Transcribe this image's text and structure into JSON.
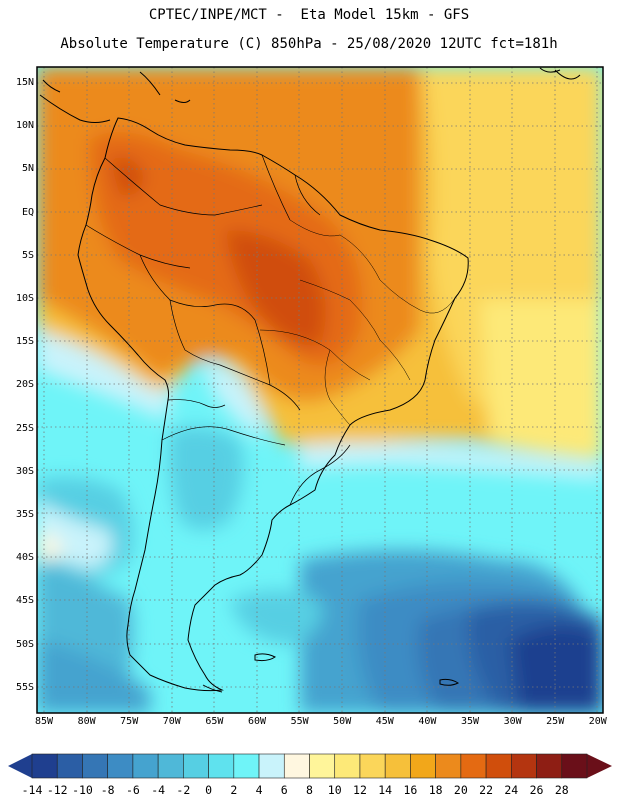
{
  "header": {
    "title_line1": "CPTEC/INPE/MCT -  Eta Model 15km - GFS",
    "title_line2": "Absolute Temperature (C) 850hPa - 25/08/2020 12UTC fct=181h"
  },
  "map": {
    "lat_labels": [
      "15N",
      "10N",
      "5N",
      "EQ",
      "5S",
      "10S",
      "15S",
      "20S",
      "25S",
      "30S",
      "35S",
      "40S",
      "45S",
      "50S",
      "55S"
    ],
    "lon_labels": [
      "85W",
      "80W",
      "75W",
      "70W",
      "65W",
      "60W",
      "55W",
      "50W",
      "45W",
      "40W",
      "35W",
      "30W",
      "25W",
      "20W"
    ]
  },
  "colorbar": {
    "labels": [
      "-14",
      "-12",
      "-10",
      "-8",
      "-6",
      "-4",
      "-2",
      "0",
      "2",
      "4",
      "6",
      "8",
      "10",
      "12",
      "14",
      "16",
      "18",
      "20",
      "22",
      "24",
      "26",
      "28"
    ],
    "colors": [
      "#1f3f8f",
      "#2b5ea5",
      "#3576b5",
      "#3d8cc4",
      "#45a3cf",
      "#4fb8d8",
      "#56cfe3",
      "#5fe2ee",
      "#6ff4f8",
      "#c9f3fb",
      "#fff7e0",
      "#fff59a",
      "#fde978",
      "#fbd65a",
      "#f6c03a",
      "#f2a71a",
      "#ec8a1c",
      "#e46a12",
      "#d04e0c",
      "#b43510",
      "#8e1e14",
      "#6a0f19"
    ]
  }
}
